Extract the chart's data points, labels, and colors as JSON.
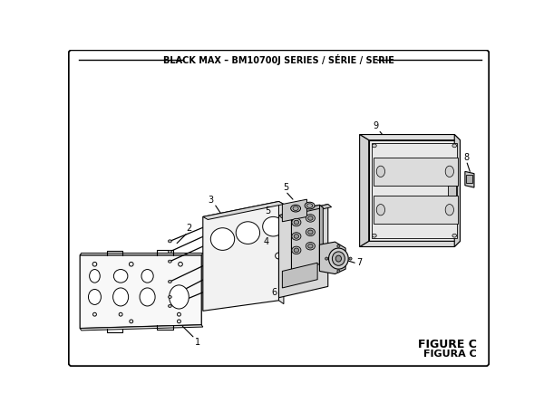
{
  "title": "BLACK MAX – BM10700J SERIES / SÉRIE / SERIE",
  "figure_label": "FIGURE C",
  "figura_label": "FIGURA C",
  "bg_color": "#ffffff",
  "line_color": "#000000",
  "fig_width": 6.0,
  "fig_height": 4.55,
  "dpi": 100
}
